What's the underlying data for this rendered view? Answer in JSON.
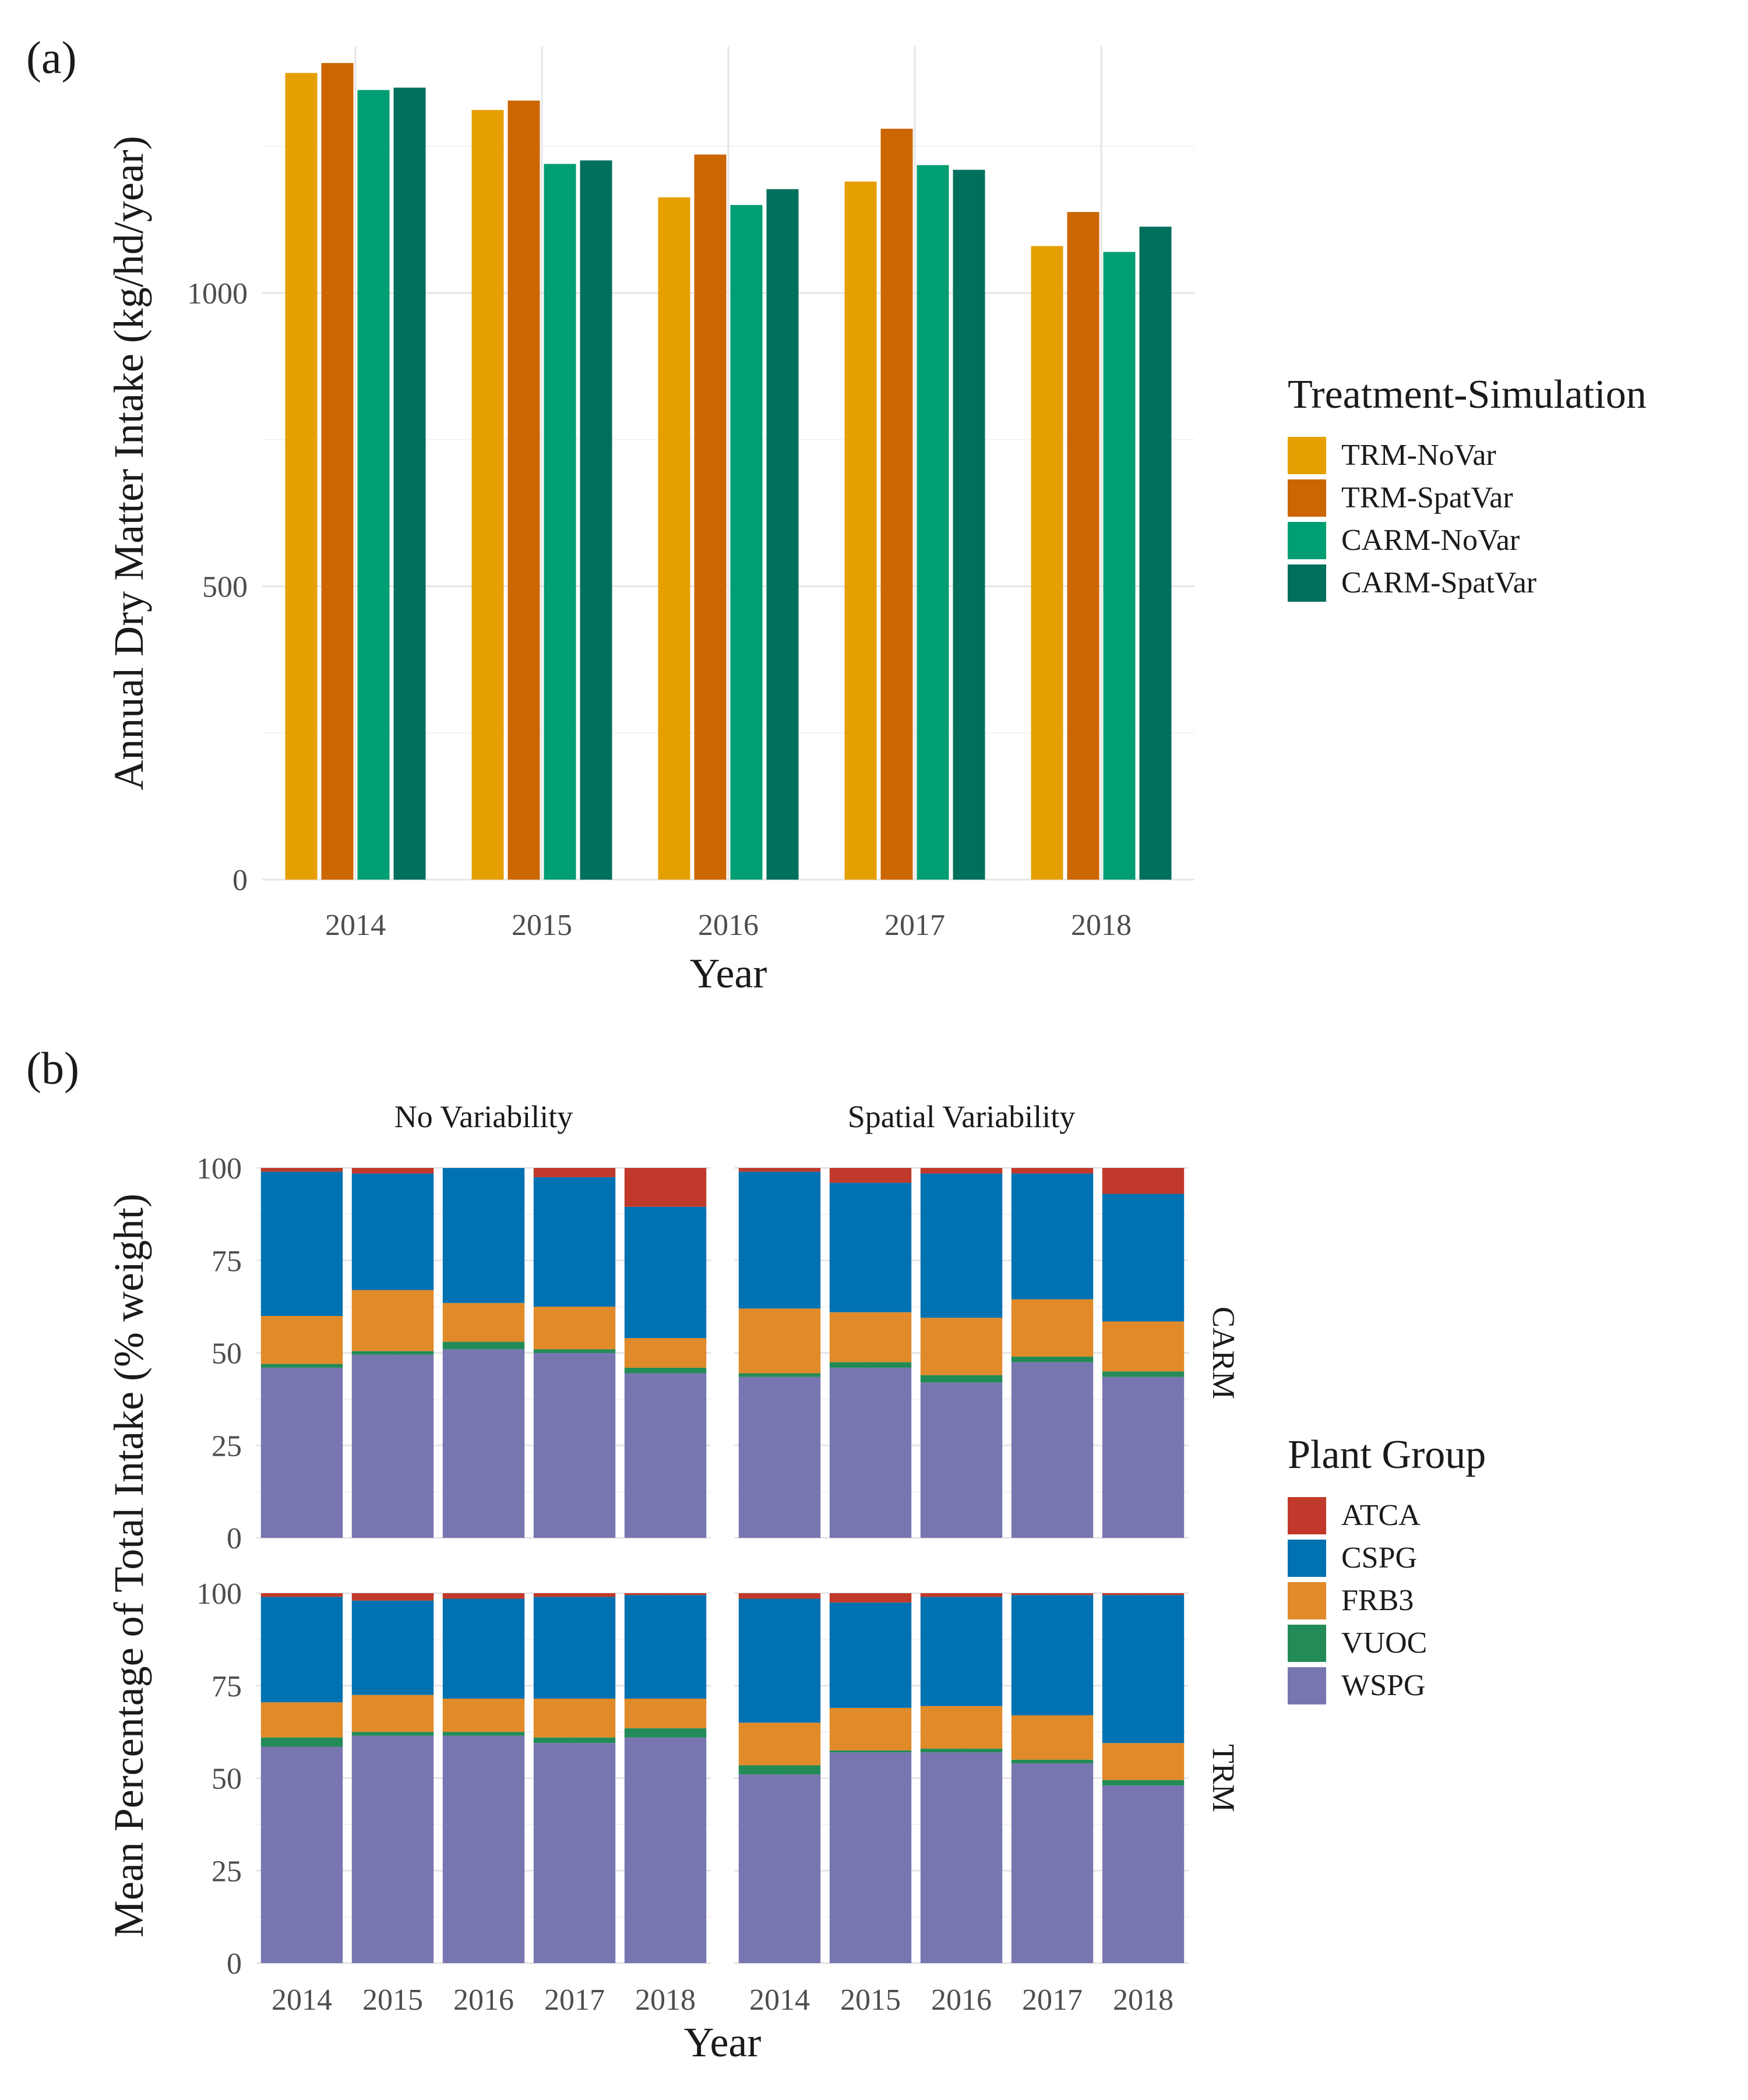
{
  "panel_a": {
    "letter": "(a)",
    "legend_title": "Treatment-Simulation",
    "chart_data": {
      "type": "bar",
      "categories": [
        "2014",
        "2015",
        "2016",
        "2017",
        "2018"
      ],
      "series": [
        {
          "name": "TRM-NoVar",
          "color": "#E69F00",
          "values": [
            1375,
            1312,
            1163,
            1190,
            1080
          ]
        },
        {
          "name": "TRM-SpatVar",
          "color": "#CC6600",
          "values": [
            1392,
            1328,
            1236,
            1280,
            1138
          ]
        },
        {
          "name": "CARM-NoVar",
          "color": "#009E73",
          "values": [
            1346,
            1220,
            1150,
            1218,
            1070
          ]
        },
        {
          "name": "CARM-SpatVar",
          "color": "#006F5C",
          "values": [
            1350,
            1226,
            1177,
            1210,
            1113
          ]
        }
      ],
      "y_ticks": [
        "0",
        "500",
        "1000"
      ],
      "ylim": [
        0,
        1420
      ],
      "xlabel": "Year",
      "ylabel": "Annual Dry Matter Intake (kg/hd/year)",
      "grid": true,
      "legend_position": "right"
    }
  },
  "panel_b": {
    "letter": "(b)",
    "legend_title": "Plant Group",
    "chart_data": {
      "type": "bar",
      "stacked": true,
      "categories": [
        "2014",
        "2015",
        "2016",
        "2017",
        "2018"
      ],
      "groups": [
        {
          "name": "ATCA",
          "color": "#C0392B"
        },
        {
          "name": "CSPG",
          "color": "#0072B2"
        },
        {
          "name": "FRB3",
          "color": "#E08A2A"
        },
        {
          "name": "VUOC",
          "color": "#238B57"
        },
        {
          "name": "WSPG",
          "color": "#7876B1"
        }
      ],
      "facet_columns": [
        "No Variability",
        "Spatial Variability"
      ],
      "facet_rows": [
        "CARM",
        "TRM"
      ],
      "y_ticks": [
        "0",
        "25",
        "50",
        "75",
        "100"
      ],
      "ylim": [
        0,
        100
      ],
      "xlabel": "Year",
      "ylabel": "Mean Percentage of Total Intake (% weight)",
      "grid": true,
      "legend_position": "right",
      "panels": [
        {
          "row": "CARM",
          "col": "No Variability",
          "bars": [
            {
              "WSPG": 46,
              "VUOC": 1,
              "FRB3": 13,
              "CSPG": 39,
              "ATCA": 1
            },
            {
              "WSPG": 49.5,
              "VUOC": 1,
              "FRB3": 16.5,
              "CSPG": 31.5,
              "ATCA": 1.5
            },
            {
              "WSPG": 51,
              "VUOC": 2,
              "FRB3": 10.5,
              "CSPG": 36.5,
              "ATCA": 0
            },
            {
              "WSPG": 50,
              "VUOC": 1,
              "FRB3": 11.5,
              "CSPG": 35,
              "ATCA": 2.5
            },
            {
              "WSPG": 44.5,
              "VUOC": 1.5,
              "FRB3": 8,
              "CSPG": 35.5,
              "ATCA": 10.5
            }
          ]
        },
        {
          "row": "CARM",
          "col": "Spatial Variability",
          "bars": [
            {
              "WSPG": 43.5,
              "VUOC": 1,
              "FRB3": 17.5,
              "CSPG": 37,
              "ATCA": 1
            },
            {
              "WSPG": 46,
              "VUOC": 1.5,
              "FRB3": 13.5,
              "CSPG": 35,
              "ATCA": 4
            },
            {
              "WSPG": 42,
              "VUOC": 2,
              "FRB3": 15.5,
              "CSPG": 39,
              "ATCA": 1.5
            },
            {
              "WSPG": 47.5,
              "VUOC": 1.5,
              "FRB3": 15.5,
              "CSPG": 34,
              "ATCA": 1.5
            },
            {
              "WSPG": 43.5,
              "VUOC": 1.5,
              "FRB3": 13.5,
              "CSPG": 34.5,
              "ATCA": 7
            }
          ]
        },
        {
          "row": "TRM",
          "col": "No Variability",
          "bars": [
            {
              "WSPG": 58.5,
              "VUOC": 2.5,
              "FRB3": 9.5,
              "CSPG": 28.5,
              "ATCA": 1
            },
            {
              "WSPG": 61.5,
              "VUOC": 1,
              "FRB3": 10,
              "CSPG": 25.5,
              "ATCA": 2
            },
            {
              "WSPG": 61.5,
              "VUOC": 1,
              "FRB3": 9,
              "CSPG": 27,
              "ATCA": 1.5
            },
            {
              "WSPG": 59.5,
              "VUOC": 1.5,
              "FRB3": 10.5,
              "CSPG": 27.5,
              "ATCA": 1
            },
            {
              "WSPG": 61,
              "VUOC": 2.5,
              "FRB3": 8,
              "CSPG": 28,
              "ATCA": 0.5
            }
          ]
        },
        {
          "row": "TRM",
          "col": "Spatial Variability",
          "bars": [
            {
              "WSPG": 51,
              "VUOC": 2.5,
              "FRB3": 11.5,
              "CSPG": 33.5,
              "ATCA": 1.5
            },
            {
              "WSPG": 57,
              "VUOC": 0.5,
              "FRB3": 11.5,
              "CSPG": 28.5,
              "ATCA": 2.5
            },
            {
              "WSPG": 57,
              "VUOC": 1,
              "FRB3": 11.5,
              "CSPG": 29.5,
              "ATCA": 1
            },
            {
              "WSPG": 54,
              "VUOC": 1,
              "FRB3": 12,
              "CSPG": 32.5,
              "ATCA": 0.5
            },
            {
              "WSPG": 48,
              "VUOC": 1.5,
              "FRB3": 10,
              "CSPG": 40,
              "ATCA": 0.5
            }
          ]
        }
      ]
    }
  }
}
